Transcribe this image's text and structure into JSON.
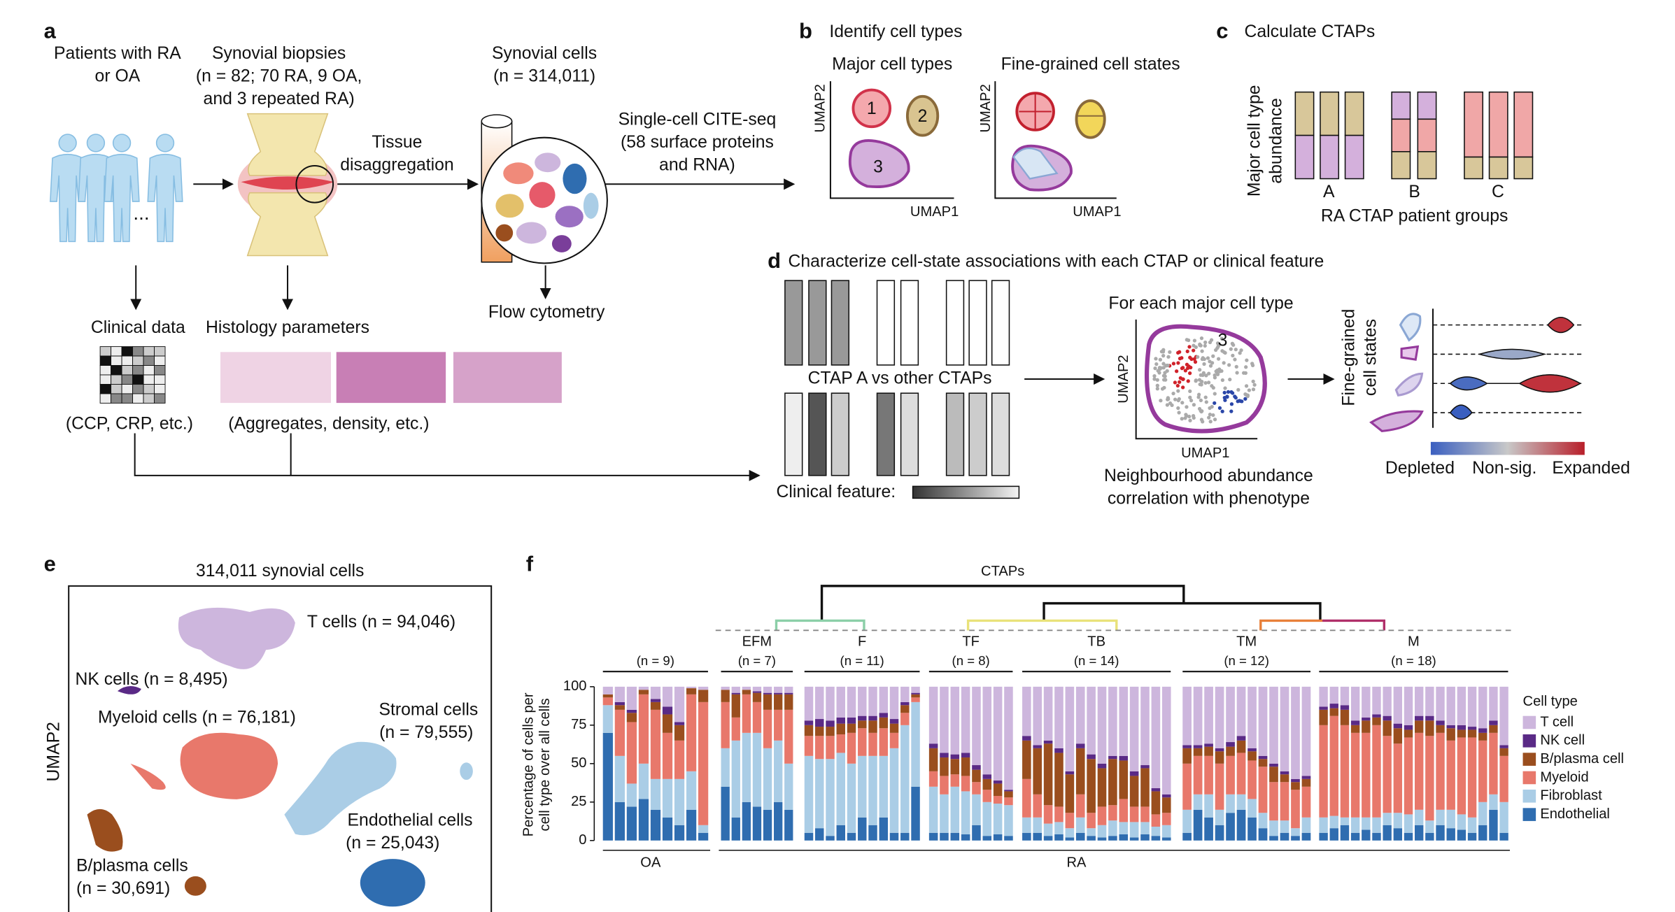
{
  "panel_a": {
    "letter": "a",
    "patients": [
      "Patients with RA",
      "or OA"
    ],
    "biopsies": [
      "Synovial biopsies",
      "(n = 82; 70 RA, 9 OA,",
      "and 3 repeated RA)"
    ],
    "cells": [
      "Synovial cells",
      "(n = 314,011)"
    ],
    "tissue": [
      "Tissue",
      "disaggregation"
    ],
    "citeseq": [
      "Single-cell CITE-seq",
      "(58 surface proteins",
      "and RNA)"
    ],
    "ellipsis": "...",
    "flow": "Flow cytometry",
    "clinical": "Clinical data",
    "histology": "Histology parameters",
    "clinical_note": "(CCP, CRP, etc.)",
    "histology_note": "(Aggregates, density, etc.)"
  },
  "panel_b": {
    "letter": "b",
    "title": "Identify cell types",
    "major": "Major cell types",
    "fine": "Fine-grained cell states",
    "umap1": "UMAP1",
    "umap2": "UMAP2",
    "clusters": [
      "1",
      "2",
      "3"
    ]
  },
  "panel_c": {
    "letter": "c",
    "title": "Calculate CTAPs",
    "ylabel": [
      "Major cell type",
      "abundance"
    ],
    "groups": [
      "A",
      "B",
      "C"
    ],
    "xlabel": "RA CTAP patient groups"
  },
  "panel_d": {
    "letter": "d",
    "title": "Characterize cell-state associations with each CTAP or clinical feature",
    "ctap": "CTAP A vs other CTAPs",
    "clinical": "Clinical feature:",
    "per_type": "For each major cell type",
    "cluster": "3",
    "umap1": "UMAP1",
    "umap2": "UMAP2",
    "caption": [
      "Neighbourhood abundance",
      "correlation with phenotype"
    ],
    "ylabel": [
      "Fine-grained",
      "cell states"
    ],
    "scale": [
      "Depleted",
      "Non-sig.",
      "Expanded"
    ]
  },
  "panel_e": {
    "letter": "e",
    "title": "314,011 synovial cells",
    "ylabel": "UMAP2",
    "labels": [
      "T cells (n = 94,046)",
      "NK cells (n = 8,495)",
      "Myeloid cells (n = 76,181)",
      "Stromal cells",
      "(n = 79,555)",
      "Endothelial cells",
      "(n = 25,043)",
      "B/plasma cells",
      "(n = 30,691)"
    ]
  },
  "panel_f": {
    "letter": "f",
    "type": "bar",
    "stacked": true,
    "title": "CTAPs",
    "ylabel": [
      "Percentage of cells per",
      "cell type over all cells"
    ],
    "ylim": [
      0,
      100
    ],
    "yticks": [
      0,
      25,
      50,
      75,
      100
    ],
    "legend_title": "Cell type",
    "cohorts": [
      "OA",
      "RA"
    ],
    "series": [
      {
        "name": "T cell",
        "color": "#cdb6dd"
      },
      {
        "name": "NK cell",
        "color": "#5a2a86"
      },
      {
        "name": "B/plasma cell",
        "color": "#9a4e1e"
      },
      {
        "name": "Myeloid",
        "color": "#e8786b"
      },
      {
        "name": "Fibroblast",
        "color": "#aacde6"
      },
      {
        "name": "Endothelial",
        "color": "#2f6db0"
      }
    ],
    "groups": [
      {
        "name": null,
        "n": "(n = 9)",
        "bars": [
          [
            5,
            0,
            2,
            5,
            18,
            70
          ],
          [
            10,
            2,
            3,
            30,
            30,
            25
          ],
          [
            15,
            2,
            6,
            40,
            15,
            22
          ],
          [
            2,
            0,
            3,
            45,
            23,
            27
          ],
          [
            8,
            2,
            5,
            45,
            20,
            20
          ],
          [
            13,
            5,
            12,
            30,
            25,
            15
          ],
          [
            23,
            2,
            10,
            25,
            30,
            10
          ],
          [
            1,
            0,
            4,
            50,
            25,
            20
          ],
          [
            2,
            0,
            8,
            80,
            5,
            5
          ]
        ]
      },
      {
        "name": "EFM",
        "n": "(n = 7)",
        "bars": [
          [
            2,
            0,
            8,
            30,
            25,
            35
          ],
          [
            4,
            1,
            15,
            15,
            50,
            15
          ],
          [
            2,
            0,
            3,
            25,
            45,
            25
          ],
          [
            3,
            1,
            6,
            20,
            48,
            22
          ],
          [
            4,
            1,
            10,
            25,
            40,
            20
          ],
          [
            4,
            1,
            10,
            20,
            40,
            25
          ],
          [
            4,
            1,
            10,
            35,
            30,
            20
          ]
        ]
      },
      {
        "name": "F",
        "n": "(n = 11)",
        "bars": [
          [
            22,
            3,
            7,
            13,
            50,
            5
          ],
          [
            21,
            5,
            6,
            15,
            45,
            8
          ],
          [
            22,
            4,
            6,
            15,
            50,
            3
          ],
          [
            20,
            4,
            7,
            12,
            47,
            10
          ],
          [
            20,
            4,
            6,
            20,
            45,
            5
          ],
          [
            19,
            3,
            5,
            18,
            40,
            15
          ],
          [
            19,
            3,
            8,
            15,
            45,
            10
          ],
          [
            17,
            3,
            7,
            18,
            40,
            15
          ],
          [
            21,
            3,
            6,
            10,
            55,
            5
          ],
          [
            10,
            2,
            5,
            8,
            70,
            5
          ],
          [
            4,
            1,
            2,
            3,
            55,
            35
          ]
        ]
      },
      {
        "name": "TF",
        "n": "(n = 8)",
        "bars": [
          [
            37,
            3,
            15,
            10,
            30,
            5
          ],
          [
            43,
            3,
            12,
            12,
            25,
            5
          ],
          [
            44,
            3,
            10,
            8,
            30,
            5
          ],
          [
            43,
            3,
            12,
            10,
            28,
            4
          ],
          [
            51,
            3,
            8,
            8,
            20,
            10
          ],
          [
            57,
            3,
            7,
            8,
            22,
            3
          ],
          [
            61,
            2,
            8,
            5,
            20,
            4
          ],
          [
            67,
            1,
            4,
            5,
            20,
            3
          ]
        ]
      },
      {
        "name": "TB",
        "n": "(n = 14)",
        "bars": [
          [
            32,
            3,
            25,
            25,
            10,
            5
          ],
          [
            38,
            2,
            30,
            15,
            10,
            5
          ],
          [
            35,
            2,
            40,
            12,
            8,
            3
          ],
          [
            40,
            3,
            35,
            10,
            8,
            4
          ],
          [
            55,
            2,
            25,
            10,
            6,
            2
          ],
          [
            37,
            3,
            30,
            15,
            10,
            5
          ],
          [
            44,
            3,
            35,
            10,
            5,
            3
          ],
          [
            50,
            3,
            25,
            12,
            8,
            2
          ],
          [
            45,
            2,
            30,
            10,
            10,
            3
          ],
          [
            45,
            3,
            25,
            15,
            8,
            4
          ],
          [
            55,
            3,
            20,
            10,
            10,
            2
          ],
          [
            51,
            2,
            25,
            10,
            8,
            4
          ],
          [
            66,
            2,
            15,
            8,
            6,
            3
          ],
          [
            70,
            2,
            10,
            8,
            8,
            2
          ]
        ]
      },
      {
        "name": "TM",
        "n": "(n = 12)",
        "bars": [
          [
            38,
            2,
            10,
            30,
            15,
            5
          ],
          [
            38,
            2,
            5,
            25,
            10,
            20
          ],
          [
            37,
            2,
            6,
            25,
            15,
            15
          ],
          [
            40,
            2,
            8,
            30,
            10,
            10
          ],
          [
            36,
            3,
            6,
            25,
            12,
            18
          ],
          [
            32,
            3,
            8,
            27,
            10,
            20
          ],
          [
            40,
            2,
            6,
            25,
            12,
            15
          ],
          [
            45,
            2,
            5,
            30,
            10,
            8
          ],
          [
            50,
            2,
            10,
            25,
            10,
            3
          ],
          [
            55,
            2,
            5,
            25,
            8,
            5
          ],
          [
            60,
            2,
            5,
            25,
            5,
            3
          ],
          [
            58,
            2,
            5,
            20,
            10,
            5
          ]
        ]
      },
      {
        "name": "M",
        "n": "(n = 18)",
        "bars": [
          [
            13,
            2,
            10,
            60,
            10,
            5
          ],
          [
            11,
            3,
            5,
            65,
            8,
            8
          ],
          [
            12,
            3,
            10,
            60,
            5,
            10
          ],
          [
            22,
            3,
            5,
            55,
            10,
            5
          ],
          [
            20,
            2,
            8,
            55,
            8,
            7
          ],
          [
            18,
            2,
            5,
            60,
            10,
            5
          ],
          [
            19,
            3,
            10,
            50,
            8,
            10
          ],
          [
            24,
            3,
            10,
            45,
            10,
            8
          ],
          [
            25,
            3,
            5,
            50,
            12,
            5
          ],
          [
            19,
            3,
            8,
            50,
            10,
            10
          ],
          [
            19,
            3,
            10,
            55,
            8,
            5
          ],
          [
            22,
            3,
            5,
            50,
            10,
            10
          ],
          [
            25,
            2,
            8,
            45,
            12,
            8
          ],
          [
            25,
            3,
            5,
            50,
            10,
            7
          ],
          [
            26,
            2,
            5,
            52,
            10,
            5
          ],
          [
            27,
            3,
            5,
            40,
            15,
            10
          ],
          [
            22,
            3,
            5,
            40,
            10,
            20
          ],
          [
            38,
            2,
            5,
            30,
            20,
            5
          ]
        ]
      }
    ]
  }
}
